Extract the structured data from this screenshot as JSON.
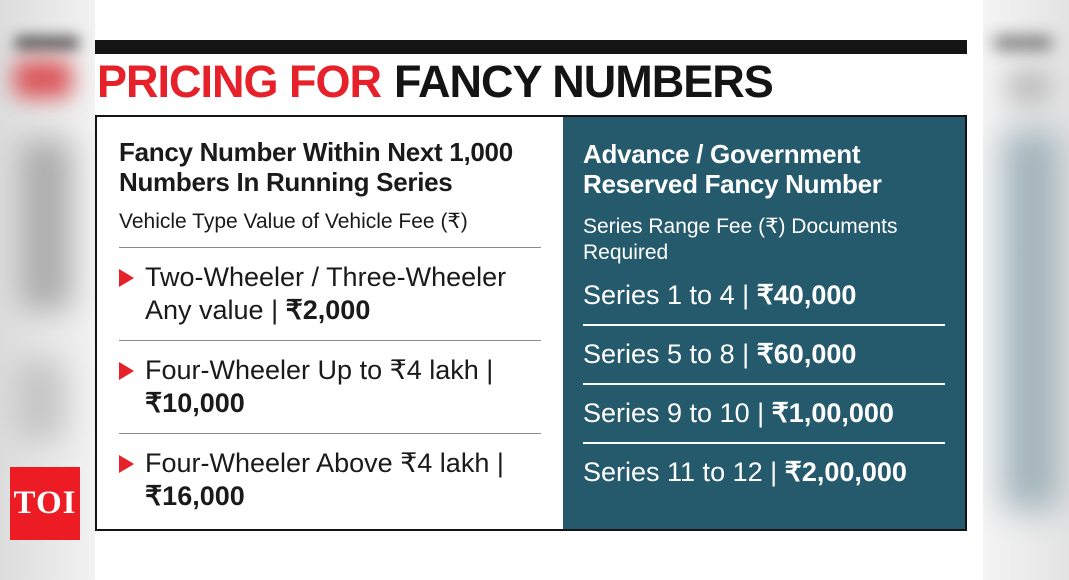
{
  "title": {
    "red": "PRICING FOR",
    "black": "FANCY NUMBERS"
  },
  "left_panel": {
    "heading": "Fancy Number Within Next 1,000 Numbers In Running Series",
    "subheading": "Vehicle Type Value of Vehicle Fee (₹)",
    "items": [
      {
        "label": "Two-Wheeler / Three-Wheeler Any value | ",
        "fee": "₹2,000"
      },
      {
        "label": "Four-Wheeler Up to ₹4 lakh | ",
        "fee": "₹10,000"
      },
      {
        "label": "Four-Wheeler Above ₹4 lakh | ",
        "fee": "₹16,000"
      }
    ]
  },
  "right_panel": {
    "heading": "Advance / Government Reserved Fancy Number",
    "subheading": "Series Range Fee (₹) Documents Required",
    "rows": [
      {
        "label": "Series 1 to 4 | ",
        "fee": "₹40,000"
      },
      {
        "label": "Series 5 to 8 | ",
        "fee": "₹60,000"
      },
      {
        "label": "Series 9 to 10 | ",
        "fee": "₹1,00,000"
      },
      {
        "label": "Series 11 to 12 | ",
        "fee": "₹2,00,000"
      }
    ]
  },
  "logo": {
    "text": "TOI"
  },
  "colors": {
    "accent_red": "#e62129",
    "panel_teal": "#245a6c",
    "bar_black": "#141414"
  }
}
